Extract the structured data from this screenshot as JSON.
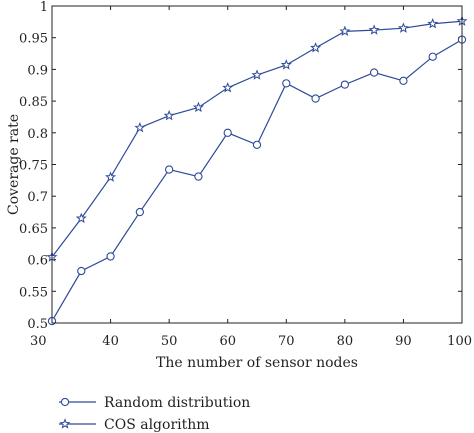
{
  "chart_data": {
    "type": "line",
    "xlabel": "The number of sensor nodes",
    "ylabel": "Coverage rate",
    "xlim": [
      30,
      100
    ],
    "ylim": [
      0.5,
      1
    ],
    "x": [
      30,
      35,
      40,
      45,
      50,
      55,
      60,
      65,
      70,
      75,
      80,
      85,
      90,
      95,
      100
    ],
    "xticks": [
      "30",
      "40",
      "50",
      "60",
      "70",
      "80",
      "90",
      "100"
    ],
    "yticks": [
      "0.5",
      "0.55",
      "0.6",
      "0.65",
      "0.7",
      "0.75",
      "0.8",
      "0.85",
      "0.9",
      "0.95",
      "1"
    ],
    "grid": false,
    "legend_position": "below plot, left",
    "series": [
      {
        "name": "Random distribution",
        "marker": "circle",
        "color": "#2e4a9a",
        "values": [
          0.503,
          0.582,
          0.605,
          0.675,
          0.742,
          0.731,
          0.8,
          0.781,
          0.878,
          0.854,
          0.876,
          0.895,
          0.882,
          0.92,
          0.947
        ]
      },
      {
        "name": "COS algorithm",
        "marker": "star",
        "color": "#2e4a9a",
        "values": [
          0.604,
          0.665,
          0.73,
          0.808,
          0.827,
          0.84,
          0.871,
          0.891,
          0.907,
          0.934,
          0.96,
          0.962,
          0.965,
          0.972,
          0.976
        ]
      }
    ]
  }
}
